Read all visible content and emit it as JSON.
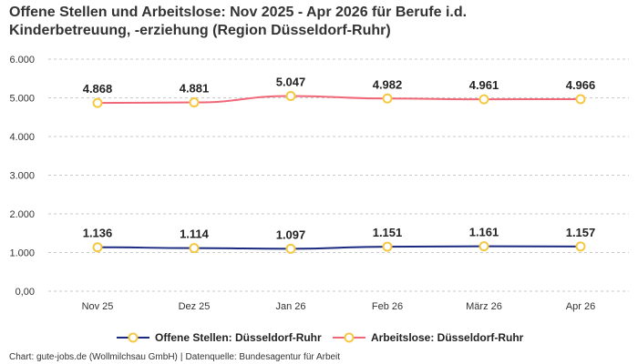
{
  "title_line1": "Offene Stellen und Arbeitslose: Nov 2025 - Apr 2026 für Berufe i.d.",
  "title_line2": "Kinderbetreuung, -erziehung (Region Düsseldorf-Ruhr)",
  "source_left": "Chart: gute-jobs.de (Wollmilchsau GmbH)",
  "source_separator": "|",
  "source_right": "Datenquelle: Bundesagentur für Arbeit",
  "chart_data": {
    "type": "line",
    "categories": [
      "Nov 25",
      "Dez 25",
      "Jan 26",
      "Feb 26",
      "März 26",
      "Apr 26"
    ],
    "yticks": [
      "0,00",
      "1.000",
      "2.000",
      "3.000",
      "4.000",
      "5.000",
      "6.000"
    ],
    "ylim": [
      0,
      6000
    ],
    "grid": true,
    "legend_position": "bottom",
    "series": [
      {
        "name": "Offene Stellen: Düsseldorf-Ruhr",
        "values": [
          1136,
          1114,
          1097,
          1151,
          1161,
          1157
        ],
        "labels": [
          "1.136",
          "1.114",
          "1.097",
          "1.151",
          "1.161",
          "1.157"
        ],
        "color": "#1a2a80"
      },
      {
        "name": "Arbeitslose: Düsseldorf-Ruhr",
        "values": [
          4868,
          4881,
          5047,
          4982,
          4961,
          4966
        ],
        "labels": [
          "4.868",
          "4.881",
          "5.047",
          "4.982",
          "4.961",
          "4.966"
        ],
        "color": "#f06878"
      }
    ],
    "marker_fill": "#ffffff",
    "marker_stroke": "#f5c842"
  }
}
